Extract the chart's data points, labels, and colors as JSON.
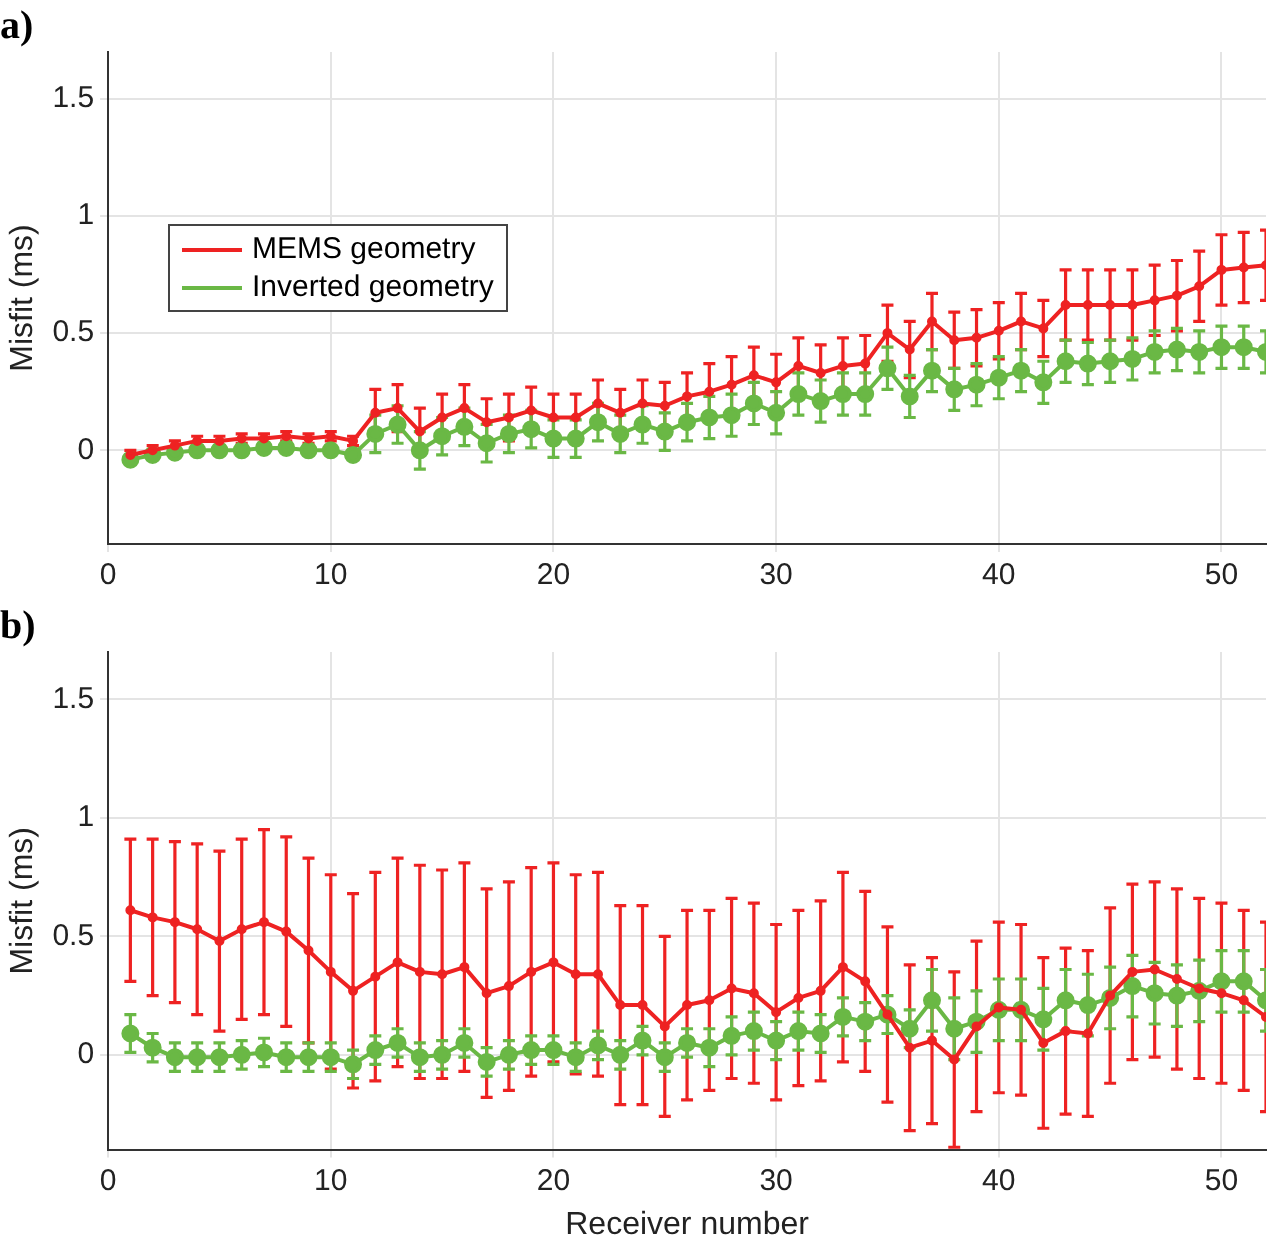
{
  "chart_data": [
    {
      "type": "line",
      "title": "a)",
      "ylabel": "Misfit (ms)",
      "xlim": [
        0,
        52
      ],
      "xticks": [
        0,
        10,
        20,
        30,
        40,
        50
      ],
      "ylim": [
        -0.4,
        1.7
      ],
      "yticks": [
        0,
        0.5,
        1,
        1.5
      ],
      "grid": true,
      "legend": "left",
      "marker": "circle",
      "x": [
        1,
        2,
        3,
        4,
        5,
        6,
        7,
        8,
        9,
        10,
        11,
        12,
        13,
        14,
        15,
        16,
        17,
        18,
        19,
        20,
        21,
        22,
        23,
        24,
        25,
        26,
        27,
        28,
        29,
        30,
        31,
        32,
        33,
        34,
        35,
        36,
        37,
        38,
        39,
        40,
        41,
        42,
        43,
        44,
        45,
        46,
        47,
        48,
        49,
        50,
        51,
        52
      ],
      "series": [
        {
          "name": "MEMS geometry",
          "color": "#ee2222",
          "values": [
            -0.02,
            0.0,
            0.02,
            0.04,
            0.04,
            0.05,
            0.05,
            0.06,
            0.05,
            0.06,
            0.04,
            0.16,
            0.18,
            0.08,
            0.14,
            0.18,
            0.12,
            0.14,
            0.17,
            0.14,
            0.14,
            0.2,
            0.16,
            0.2,
            0.19,
            0.23,
            0.25,
            0.28,
            0.32,
            0.29,
            0.36,
            0.33,
            0.36,
            0.37,
            0.5,
            0.43,
            0.55,
            0.47,
            0.48,
            0.51,
            0.55,
            0.52,
            0.62,
            0.62,
            0.62,
            0.62,
            0.64,
            0.66,
            0.7,
            0.77,
            0.78,
            0.79
          ],
          "errors": [
            0.02,
            0.02,
            0.02,
            0.02,
            0.02,
            0.02,
            0.02,
            0.02,
            0.02,
            0.02,
            0.02,
            0.1,
            0.1,
            0.1,
            0.1,
            0.1,
            0.1,
            0.1,
            0.1,
            0.1,
            0.1,
            0.1,
            0.1,
            0.1,
            0.1,
            0.1,
            0.12,
            0.12,
            0.12,
            0.12,
            0.12,
            0.12,
            0.12,
            0.12,
            0.12,
            0.12,
            0.12,
            0.12,
            0.12,
            0.12,
            0.12,
            0.12,
            0.15,
            0.15,
            0.15,
            0.15,
            0.15,
            0.15,
            0.15,
            0.15,
            0.15,
            0.15
          ]
        },
        {
          "name": "Inverted geometry",
          "color": "#6ab845",
          "values": [
            -0.04,
            -0.02,
            -0.01,
            0,
            0,
            0,
            0.01,
            0.01,
            0,
            0,
            -0.02,
            0.07,
            0.11,
            0,
            0.06,
            0.1,
            0.03,
            0.07,
            0.09,
            0.05,
            0.05,
            0.12,
            0.07,
            0.11,
            0.08,
            0.12,
            0.14,
            0.15,
            0.2,
            0.16,
            0.24,
            0.21,
            0.24,
            0.24,
            0.35,
            0.23,
            0.34,
            0.26,
            0.28,
            0.31,
            0.34,
            0.29,
            0.38,
            0.37,
            0.38,
            0.39,
            0.42,
            0.43,
            0.42,
            0.44,
            0.44,
            0.42
          ],
          "errors": [
            null,
            null,
            null,
            null,
            null,
            null,
            null,
            null,
            null,
            null,
            null,
            0.08,
            0.08,
            0.08,
            0.08,
            0.08,
            0.08,
            0.08,
            0.08,
            0.08,
            0.08,
            0.08,
            0.08,
            0.08,
            0.08,
            0.08,
            0.09,
            0.09,
            0.09,
            0.09,
            0.09,
            0.09,
            0.09,
            0.09,
            0.09,
            0.09,
            0.09,
            0.09,
            0.09,
            0.09,
            0.09,
            0.09,
            0.09,
            0.09,
            0.09,
            0.09,
            0.09,
            0.09,
            0.09,
            0.09,
            0.09,
            0.09
          ]
        }
      ]
    },
    {
      "type": "line",
      "title": "b)",
      "xlabel": "Receiver number",
      "ylabel": "Misfit (ms)",
      "xlim": [
        0,
        52
      ],
      "xticks": [
        0,
        10,
        20,
        30,
        40,
        50
      ],
      "ylim": [
        -0.4,
        1.7
      ],
      "yticks": [
        0,
        0.5,
        1,
        1.5
      ],
      "grid": true,
      "marker": "circle",
      "x": [
        1,
        2,
        3,
        4,
        5,
        6,
        7,
        8,
        9,
        10,
        11,
        12,
        13,
        14,
        15,
        16,
        17,
        18,
        19,
        20,
        21,
        22,
        23,
        24,
        25,
        26,
        27,
        28,
        29,
        30,
        31,
        32,
        33,
        34,
        35,
        36,
        37,
        38,
        39,
        40,
        41,
        42,
        43,
        44,
        45,
        46,
        47,
        48,
        49,
        50,
        51,
        52
      ],
      "series": [
        {
          "color": "#ee2222",
          "values": [
            0.61,
            0.58,
            0.56,
            0.53,
            0.48,
            0.53,
            0.56,
            0.52,
            0.44,
            0.35,
            0.27,
            0.33,
            0.39,
            0.35,
            0.34,
            0.37,
            0.26,
            0.29,
            0.35,
            0.39,
            0.34,
            0.34,
            0.21,
            0.21,
            0.12,
            0.21,
            0.23,
            0.28,
            0.26,
            0.18,
            0.24,
            0.27,
            0.37,
            0.31,
            0.17,
            0.03,
            0.06,
            -0.02,
            0.12,
            0.2,
            0.19,
            0.05,
            0.1,
            0.09,
            0.25,
            0.35,
            0.36,
            0.32,
            0.28,
            0.26,
            0.23,
            0.16
          ],
          "errors": [
            0.3,
            0.33,
            0.34,
            0.36,
            0.38,
            0.38,
            0.39,
            0.4,
            0.39,
            0.41,
            0.41,
            0.44,
            0.44,
            0.45,
            0.44,
            0.44,
            0.44,
            0.44,
            0.44,
            0.42,
            0.42,
            0.43,
            0.42,
            0.42,
            0.38,
            0.4,
            0.38,
            0.38,
            0.38,
            0.37,
            0.37,
            0.38,
            0.4,
            0.38,
            0.37,
            0.35,
            0.35,
            0.37,
            0.36,
            0.36,
            0.36,
            0.36,
            0.35,
            0.35,
            0.37,
            0.37,
            0.37,
            0.38,
            0.38,
            0.38,
            0.38,
            0.4
          ]
        },
        {
          "color": "#6ab845",
          "values": [
            0.09,
            0.03,
            -0.01,
            -0.01,
            -0.01,
            0,
            0.01,
            -0.01,
            -0.01,
            -0.01,
            -0.04,
            0.02,
            0.05,
            -0.01,
            0,
            0.05,
            -0.03,
            0,
            0.02,
            0.02,
            -0.01,
            0.04,
            0,
            0.06,
            -0.01,
            0.05,
            0.03,
            0.08,
            0.1,
            0.06,
            0.1,
            0.09,
            0.16,
            0.14,
            0.17,
            0.11,
            0.23,
            0.11,
            0.14,
            0.19,
            0.19,
            0.15,
            0.23,
            0.21,
            0.24,
            0.29,
            0.26,
            0.25,
            0.27,
            0.31,
            0.31,
            0.23
          ],
          "errors": [
            0.08,
            0.06,
            0.06,
            0.06,
            0.06,
            0.06,
            0.06,
            0.06,
            0.06,
            0.06,
            0.06,
            0.06,
            0.06,
            0.06,
            0.06,
            0.06,
            0.06,
            0.06,
            0.06,
            0.06,
            0.06,
            0.06,
            0.06,
            0.06,
            0.06,
            0.06,
            0.08,
            0.08,
            0.08,
            0.08,
            0.08,
            0.08,
            0.08,
            0.08,
            0.08,
            0.08,
            0.13,
            0.13,
            0.13,
            0.13,
            0.13,
            0.13,
            0.13,
            0.13,
            0.13,
            0.13,
            0.13,
            0.13,
            0.13,
            0.13,
            0.13,
            0.13
          ]
        }
      ]
    }
  ]
}
